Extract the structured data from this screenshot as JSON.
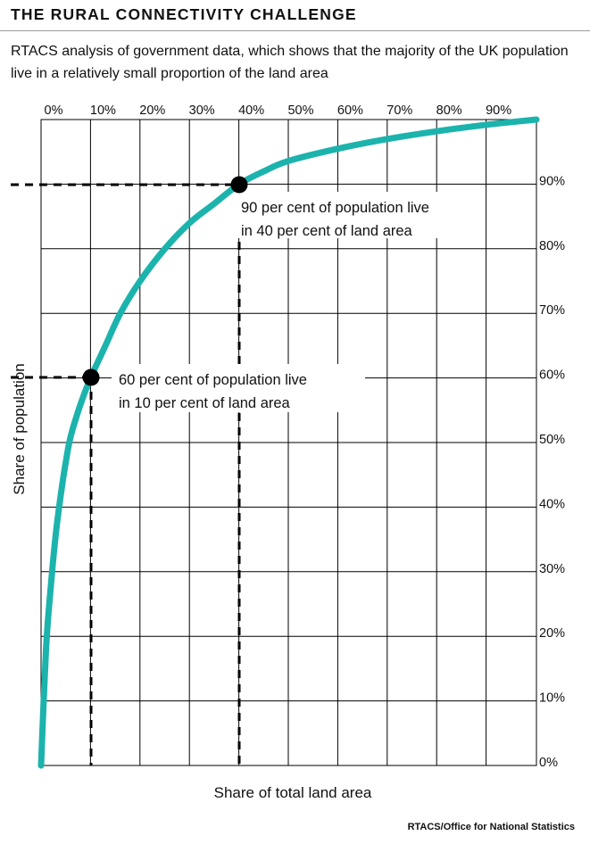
{
  "title": "THE RURAL CONNECTIVITY CHALLENGE",
  "subtitle": "RTACS analysis of government data, which shows that the majority of the UK population live in a relatively small proportion of the land area",
  "source": "RTACS/Office for National Statistics",
  "colors": {
    "curve": "#1cb3ad",
    "grid": "#000000",
    "text": "#111111"
  },
  "chart_data": {
    "type": "line",
    "xlabel": "Share of total land area",
    "ylabel": "Share of population",
    "x_ticks": [
      "0%",
      "10%",
      "20%",
      "30%",
      "40%",
      "50%",
      "60%",
      "70%",
      "80%",
      "90%"
    ],
    "y_ticks": [
      "0%",
      "10%",
      "20%",
      "30%",
      "40%",
      "50%",
      "60%",
      "70%",
      "80%",
      "90%"
    ],
    "xlim": [
      0,
      100
    ],
    "ylim": [
      0,
      100
    ],
    "grid": true,
    "series": [
      {
        "x": [
          0,
          1,
          2,
          3,
          4,
          5,
          6,
          8,
          10,
          13,
          16,
          20,
          25,
          30,
          35,
          40,
          45,
          50,
          60,
          70,
          80,
          90,
          100
        ],
        "y": [
          0,
          18,
          28,
          36,
          42,
          47,
          51,
          56,
          60,
          65,
          70,
          75,
          80,
          84,
          87,
          90,
          92,
          93.6,
          95.5,
          97,
          98.2,
          99.2,
          100
        ]
      }
    ],
    "annotations": [
      {
        "x": 10,
        "y": 60,
        "lines": [
          "60 per cent of population live",
          "in 10 per cent of land area"
        ]
      },
      {
        "x": 40,
        "y": 90,
        "lines": [
          "90 per cent of population live",
          "in 40 per cent of land area"
        ]
      }
    ]
  }
}
